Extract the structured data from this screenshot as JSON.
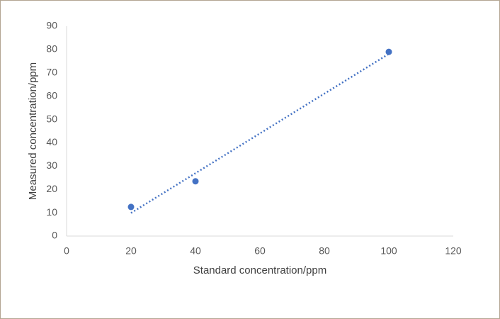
{
  "chart_data": {
    "type": "scatter",
    "x_label": "Standard concentration/ppm",
    "y_label": "Measured concentration/ppm",
    "x": [
      20,
      40,
      100
    ],
    "series": [
      {
        "color": "#4472c4",
        "values": [
          12.5,
          23.5,
          79
        ]
      }
    ],
    "trendline": "linear",
    "xlim": [
      0,
      120
    ],
    "xticks": [
      0,
      20,
      40,
      60,
      80,
      100,
      120
    ],
    "ylim": [
      0,
      90
    ],
    "yticks": [
      0,
      10,
      20,
      30,
      40,
      50,
      60,
      70,
      80,
      90
    ],
    "grid": false
  }
}
